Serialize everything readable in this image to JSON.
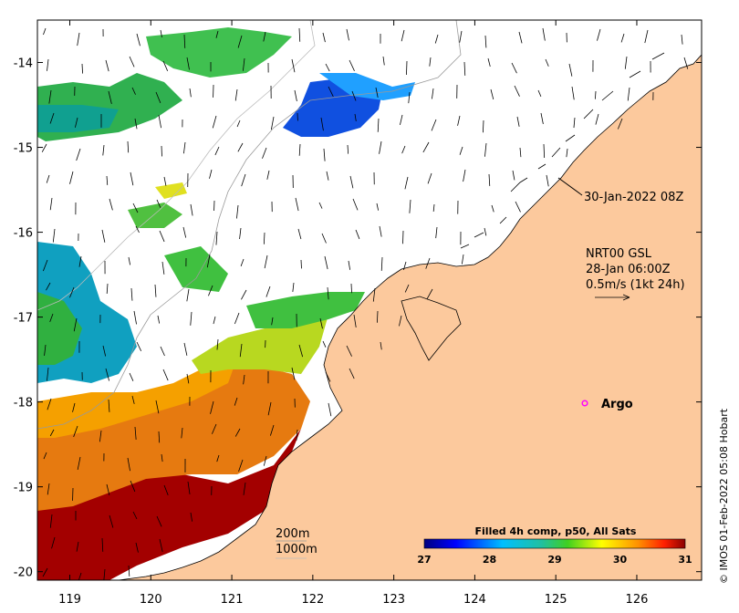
{
  "map": {
    "lon_range": [
      118.6,
      126.8
    ],
    "lat_range": [
      -20.1,
      -13.5
    ],
    "lon_ticks": [
      "119",
      "120",
      "121",
      "122",
      "123",
      "124",
      "125",
      "126"
    ],
    "lat_ticks": [
      "-14",
      "-15",
      "-16",
      "-17",
      "-18",
      "-19",
      "-20"
    ],
    "colors": {
      "land": "#fcc99d",
      "frame": "#000000",
      "isobath": "#999999"
    }
  },
  "annotations": {
    "timestamp": "30-Jan-2022 08Z",
    "current_title": "NRT00 GSL",
    "current_time": "28-Jan 06:00Z",
    "current_scale": "0.5m/s (1kt 24h)",
    "argo_label": "Argo",
    "isobath_200": "200m",
    "isobath_1000": "1000m",
    "argo_color": "#ff00ff"
  },
  "colorbar": {
    "title": "Filled 4h comp, p50, All Sats",
    "ticks": [
      "27",
      "28",
      "29",
      "30",
      "31"
    ],
    "range": [
      27,
      31
    ]
  },
  "credit": "© IMOS 01-Feb-2022 05:08 Hobart"
}
